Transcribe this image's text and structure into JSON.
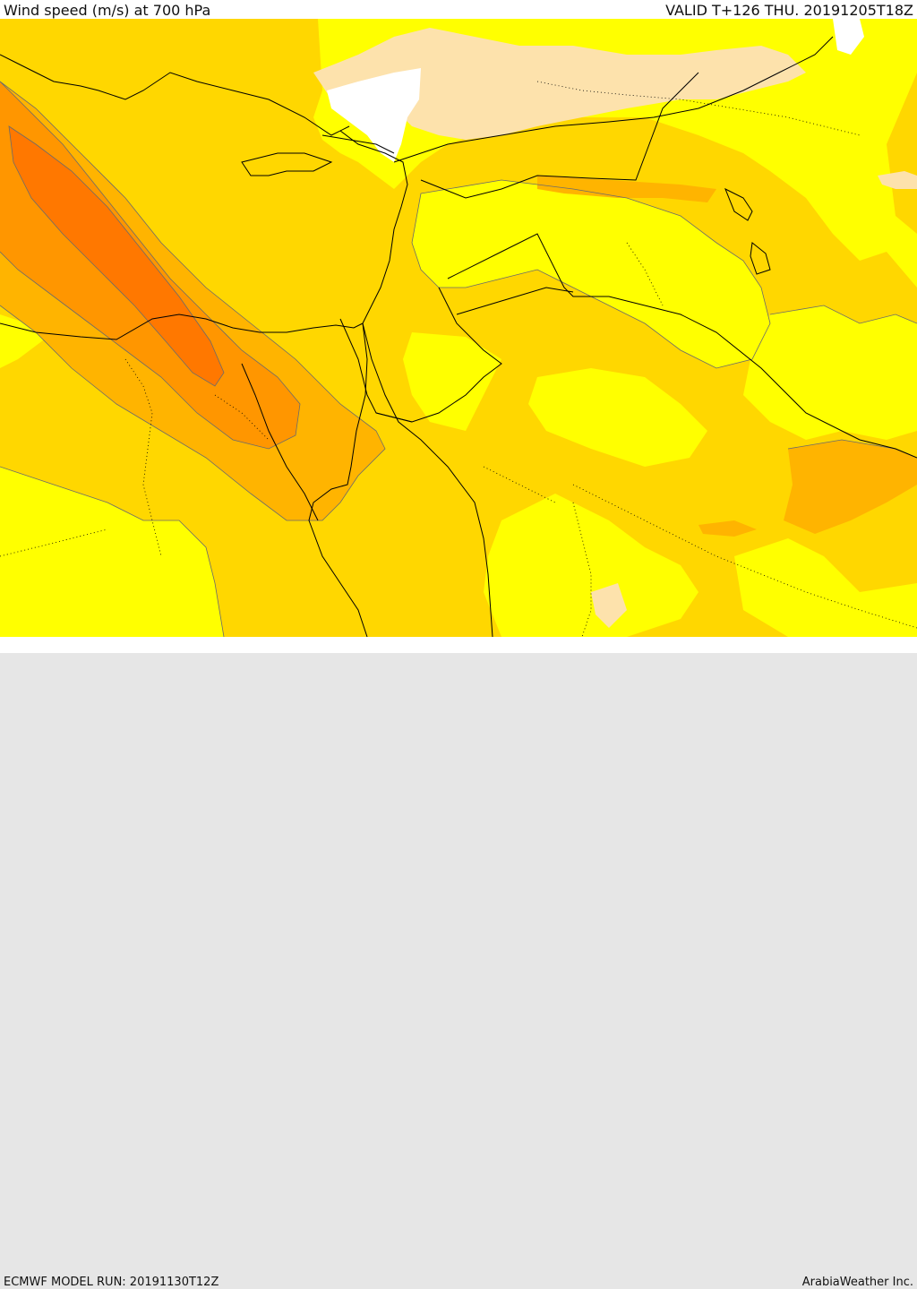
{
  "header": {
    "title": "Wind speed (m/s) at 700 hPa",
    "valid": "VALID T+126 THU. 20191205T18Z"
  },
  "footer": {
    "model_run": "ECMWF MODEL RUN: 20191130T12Z",
    "credit": "ArabiaWeather Inc."
  },
  "colors": {
    "band_calm": "#ffffff",
    "band_light": "#fde2ac",
    "band_low": "#ffff00",
    "band_mid": "#ffd700",
    "band_midhigh": "#ffb400",
    "band_high": "#ff9600",
    "band_max": "#ff7800",
    "coast": "#000000",
    "contour": "#6b6b6b"
  }
}
